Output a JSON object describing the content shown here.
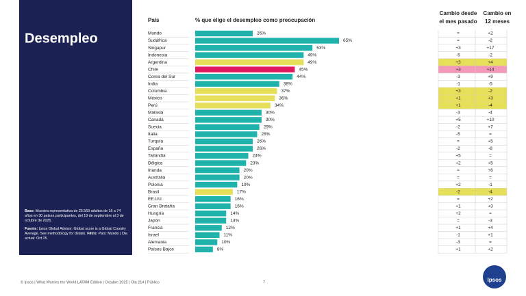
{
  "chart_data": {
    "type": "bar",
    "orientation": "horizontal",
    "title": "Desempleo",
    "category_header": "País",
    "value_header": "% que elige el desempleo como preocupación",
    "change_headers": [
      [
        "Cambio desde",
        "el mes pasado"
      ],
      [
        "Cambio en",
        "12 meses"
      ]
    ],
    "categories": [
      "Mundo",
      "Sudáfrica",
      "Singapur",
      "Indonesia",
      "Argentina",
      "Chile",
      "Corea del Sur",
      "India",
      "Colombia",
      "México",
      "Perú",
      "Malasia",
      "Canadá",
      "Suecia",
      "Italia",
      "Turquía",
      "España",
      "Tailandia",
      "Bélgica",
      "Irlanda",
      "Australia",
      "Polonia",
      "Brasil",
      "EE.UU.",
      "Gran Bretaña",
      "Hungría",
      "Japón",
      "Francia",
      "Israel",
      "Alemania",
      "Países Bajos"
    ],
    "values": [
      26,
      65,
      53,
      49,
      49,
      45,
      44,
      38,
      37,
      36,
      34,
      30,
      30,
      29,
      28,
      26,
      26,
      24,
      23,
      20,
      20,
      19,
      17,
      16,
      16,
      14,
      14,
      12,
      11,
      10,
      8
    ],
    "value_labels": [
      "26%",
      "65%",
      "53%",
      "49%",
      "49%",
      "45%",
      "44%",
      "38%",
      "37%",
      "36%",
      "34%",
      "30%",
      "30%",
      "29%",
      "28%",
      "26%",
      "26%",
      "24%",
      "23%",
      "20%",
      "20%",
      "19%",
      "17%",
      "16%",
      "16%",
      "14%",
      "14%",
      "12%",
      "11%",
      "10%",
      "8%"
    ],
    "bar_colors": [
      "#1fb3ac",
      "#1fb3ac",
      "#1fb3ac",
      "#1fb3ac",
      "#e6df5a",
      "#e0195e",
      "#1fb3ac",
      "#1fb3ac",
      "#e6df5a",
      "#e6df5a",
      "#e6df5a",
      "#1fb3ac",
      "#1fb3ac",
      "#1fb3ac",
      "#1fb3ac",
      "#1fb3ac",
      "#1fb3ac",
      "#1fb3ac",
      "#1fb3ac",
      "#1fb3ac",
      "#1fb3ac",
      "#1fb3ac",
      "#e6df5a",
      "#1fb3ac",
      "#1fb3ac",
      "#1fb3ac",
      "#1fb3ac",
      "#1fb3ac",
      "#1fb3ac",
      "#1fb3ac",
      "#1fb3ac"
    ],
    "highlight_colors": {
      "#e6df5a": "#e6df5a",
      "#e0195e": "#f39ab8"
    },
    "change_month": [
      "=",
      "=",
      "+3",
      "-5",
      "+3",
      "+3",
      "-3",
      "-1",
      "+3",
      "+1",
      "+1",
      "-3",
      "+5",
      "-2",
      "-5",
      "=",
      "-2",
      "+5",
      "+2",
      "=",
      "=",
      "+2",
      "-2",
      "=",
      "+1",
      "+2",
      "=",
      "+1",
      "-1",
      "-3",
      "+1"
    ],
    "change_year": [
      "+2",
      "-2",
      "+17",
      "-2",
      "+4",
      "+14",
      "+9",
      "-5",
      "-2",
      "+3",
      "-4",
      "-4",
      "+10",
      "+7",
      "=",
      "+5",
      "-8",
      "=",
      "+5",
      "+6",
      "=",
      "-1",
      "-4",
      "+2",
      "+3",
      "=",
      "-3",
      "+4",
      "+1",
      "=",
      "+2"
    ],
    "xlim": [
      0,
      65
    ]
  },
  "notes": [
    [
      {
        "bold": "Base:",
        "text": " Muestra representativa de 25.569 adultos de 16 a 74 años en 30 países participantes, del 19 de septiembre al 3 de octubre de 2025."
      }
    ],
    [
      {
        "bold": "Fuente:",
        "text": " Ipsos Global Advisor. Global score is a Global Country Average. See methodology for details. "
      },
      {
        "bold": "Filtro:",
        "text": " País: Mundo | Ola actual: Oct 25"
      }
    ]
  ],
  "footer": "© Ipsos | What Worries the World LATAM Edition | Octubre 2025 | Ola 214 | Público",
  "page_number": "7",
  "logo": "Ipsos"
}
